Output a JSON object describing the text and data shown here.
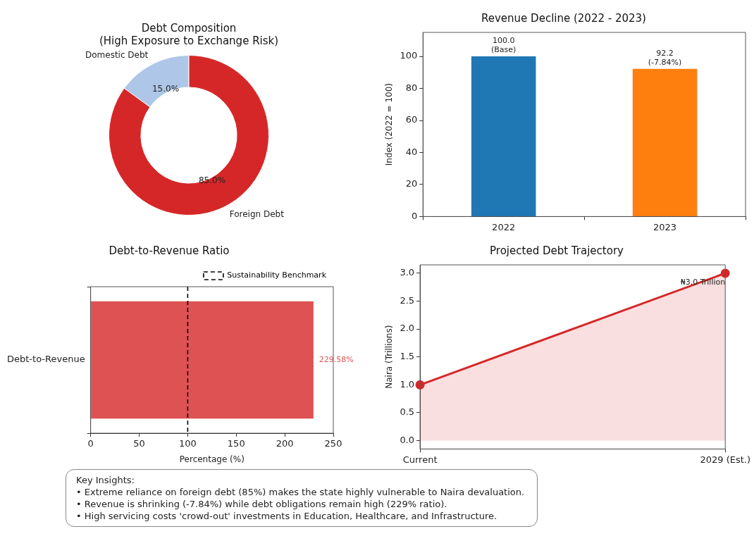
{
  "chart_data": [
    {
      "type": "donut",
      "title": "Debt Composition\n(High Exposure to Exchange Risk)",
      "categories": [
        "Domestic Debt",
        "Foreign Debt"
      ],
      "values": [
        15,
        85
      ],
      "colors": [
        "#aec7e8",
        "#d62728"
      ],
      "value_labels": [
        "15.0%",
        "85.0%"
      ]
    },
    {
      "type": "bar",
      "title": "Revenue Decline (2022 - 2023)",
      "ylabel": "Index (2022 = 100)",
      "categories": [
        "2022",
        "2023"
      ],
      "values": [
        100.0,
        92.2
      ],
      "colors": [
        "#1f77b4",
        "#ff7f0e"
      ],
      "value_labels": [
        "100.0\n(Base)",
        "92.2\n(-7.84%)"
      ],
      "ylim": [
        0,
        115
      ],
      "yticks": [
        0,
        20,
        40,
        60,
        80,
        100
      ]
    },
    {
      "type": "bar",
      "orientation": "horizontal",
      "title": "Debt-to-Revenue Ratio",
      "xlabel": "Percentage (%)",
      "categories": [
        "Debt-to-Revenue"
      ],
      "values": [
        229.58
      ],
      "color": "#de5254",
      "value_labels": [
        "229.58%"
      ],
      "xlim": [
        0,
        250
      ],
      "xticks": [
        0,
        50,
        100,
        150,
        200,
        250
      ],
      "ref_lines": [
        {
          "axis": "x",
          "value": 100,
          "label": "Sustainability Benchmark",
          "color": "#000000",
          "line_style": "dashed"
        }
      ],
      "legend": "top right"
    },
    {
      "type": "area",
      "title": "Projected Debt Trajectory",
      "ylabel": "Naira (Trillions)",
      "categories": [
        "Current",
        "2029 (Est.)"
      ],
      "series": [
        {
          "color": "#d62728",
          "values": [
            1.0,
            3.0
          ]
        }
      ],
      "marker": "circle",
      "ylim": [
        -0.15,
        3.15
      ],
      "yticks": [
        {
          "value": 0,
          "label": "0.0"
        },
        {
          "value": 0.5,
          "label": "0.5"
        },
        {
          "value": 1,
          "label": "1.0"
        },
        {
          "value": 1.5,
          "label": "1.5"
        },
        {
          "value": 2,
          "label": "2.0"
        },
        {
          "value": 2.5,
          "label": "2.5"
        },
        {
          "value": 3,
          "label": "3.0"
        }
      ],
      "annotations": [
        {
          "text": "₦3.0 Trillion",
          "x": "2029 (Est.)",
          "y": 3.0
        }
      ]
    },
    {
      "type": "other",
      "title": "Key Insights:",
      "annotations": [
        "• Extreme reliance on foreign debt (85%) makes the state highly vulnerable to Naira devaluation.",
        "• Revenue is shrinking (-7.84%) while debt obligations remain high (229% ratio).",
        "• High servicing costs 'crowd-out' investments in Education, Healthcare, and Infrastructure."
      ]
    }
  ]
}
